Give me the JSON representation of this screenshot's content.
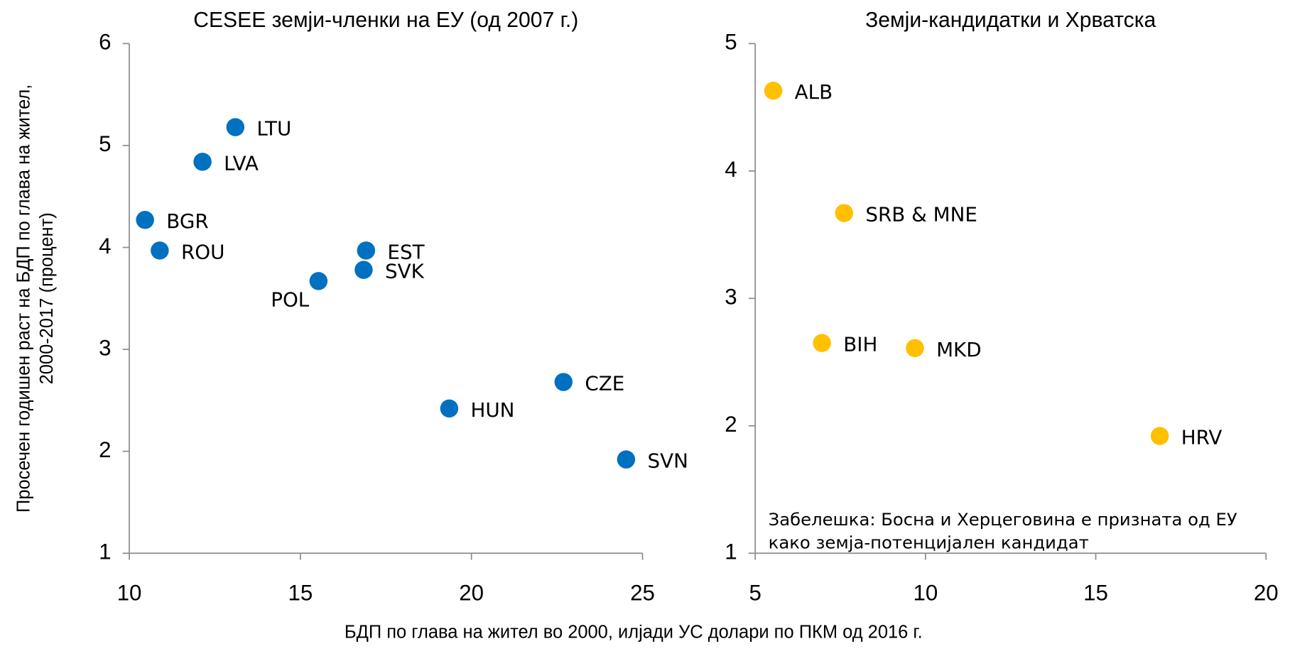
{
  "xlabel": "БДП по глава на жител во 2000, илјади УС долари по ПКМ од 2016 г.",
  "ylabel": [
    "Просечен годишен раст на БДП по глава на жител,",
    "2000-2017 (процент)"
  ],
  "chart_data": [
    {
      "type": "scatter",
      "title": "CESEE земји-членки на ЕУ (од 2007 г.)",
      "color": "#0070c0",
      "labels": [
        "LTU",
        "LVA",
        "BGR",
        "ROU",
        "EST",
        "SVK",
        "POL",
        "CZE",
        "HUN",
        "SVN"
      ],
      "x": [
        13.1,
        12.14,
        10.46,
        10.89,
        16.92,
        16.85,
        15.53,
        22.69,
        19.35,
        24.52
      ],
      "y": [
        5.18,
        4.84,
        4.27,
        3.97,
        3.97,
        3.78,
        3.67,
        2.68,
        2.42,
        1.92
      ],
      "xlim": [
        10,
        25
      ],
      "xticks": [
        10,
        15,
        20,
        25
      ],
      "ylim": [
        1,
        6
      ],
      "yticks": [
        1,
        2,
        3,
        4,
        5,
        6
      ]
    },
    {
      "type": "scatter",
      "title": "Земји-кандидатки и Хрватска",
      "color": "#ffc000",
      "labels": [
        "ALB",
        "SRB & MNE",
        "BIH",
        "MKD",
        "HRV"
      ],
      "x": [
        5.53,
        7.61,
        6.96,
        9.69,
        16.88
      ],
      "y": [
        4.63,
        3.67,
        2.65,
        2.61,
        1.92
      ],
      "xlim": [
        5,
        20
      ],
      "xticks": [
        5,
        10,
        15,
        20
      ],
      "ylim": [
        1,
        5
      ],
      "yticks": [
        1,
        2,
        3,
        4,
        5
      ],
      "annotation": [
        "Забелешка: Босна и Херцеговина е призната од ЕУ",
        "како земја-потенцијален кандидат"
      ]
    }
  ]
}
